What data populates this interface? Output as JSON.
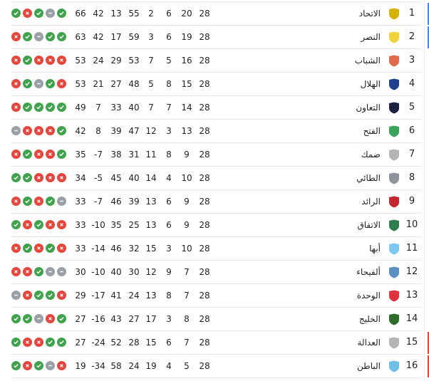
{
  "colors": {
    "win": "#3fa34d",
    "loss": "#e8453c",
    "draw": "#9aa0a6",
    "top_zone": "#4a86e8",
    "relegation_zone": "#e8453c"
  },
  "standings": [
    {
      "rank": "1",
      "team": "الاتحاد",
      "logo_color": "#d4b300",
      "played": "28",
      "won": "20",
      "drawn": "6",
      "lost": "2",
      "gf": "55",
      "ga": "13",
      "gd": "42",
      "points": "66",
      "form": [
        "W",
        "L",
        "W",
        "D",
        "W"
      ],
      "zone": "top"
    },
    {
      "rank": "2",
      "team": "النصر",
      "logo_color": "#f2d43a",
      "played": "28",
      "won": "19",
      "drawn": "6",
      "lost": "3",
      "gf": "59",
      "ga": "17",
      "gd": "42",
      "points": "63",
      "form": [
        "L",
        "W",
        "D",
        "W",
        "W"
      ],
      "zone": "top"
    },
    {
      "rank": "3",
      "team": "الشباب",
      "logo_color": "#e06a4a",
      "played": "28",
      "won": "16",
      "drawn": "5",
      "lost": "7",
      "gf": "53",
      "ga": "29",
      "gd": "24",
      "points": "53",
      "form": [
        "L",
        "W",
        "L",
        "L",
        "L"
      ],
      "zone": ""
    },
    {
      "rank": "4",
      "team": "الهلال",
      "logo_color": "#1f3f8f",
      "played": "28",
      "won": "15",
      "drawn": "8",
      "lost": "5",
      "gf": "48",
      "ga": "27",
      "gd": "21",
      "points": "53",
      "form": [
        "L",
        "W",
        "D",
        "W",
        "L"
      ],
      "zone": ""
    },
    {
      "rank": "5",
      "team": "التعاون",
      "logo_color": "#1b2340",
      "played": "28",
      "won": "14",
      "drawn": "7",
      "lost": "7",
      "gf": "40",
      "ga": "33",
      "gd": "7",
      "points": "49",
      "form": [
        "L",
        "W",
        "W",
        "W",
        "W"
      ],
      "zone": ""
    },
    {
      "rank": "6",
      "team": "الفتح",
      "logo_color": "#3aa55a",
      "played": "28",
      "won": "13",
      "drawn": "3",
      "lost": "12",
      "gf": "47",
      "ga": "39",
      "gd": "8",
      "points": "42",
      "form": [
        "D",
        "L",
        "L",
        "L",
        "W"
      ],
      "zone": ""
    },
    {
      "rank": "7",
      "team": "ضمك",
      "logo_color": "#b5b5b5",
      "played": "28",
      "won": "9",
      "drawn": "8",
      "lost": "11",
      "gf": "31",
      "ga": "38",
      "gd": "-7",
      "points": "35",
      "form": [
        "L",
        "W",
        "L",
        "L",
        "W"
      ],
      "zone": ""
    },
    {
      "rank": "8",
      "team": "الطائي",
      "logo_color": "#8e939c",
      "played": "28",
      "won": "10",
      "drawn": "4",
      "lost": "14",
      "gf": "40",
      "ga": "45",
      "gd": "-5",
      "points": "34",
      "form": [
        "W",
        "W",
        "L",
        "L",
        "L"
      ],
      "zone": ""
    },
    {
      "rank": "9",
      "team": "الرائد",
      "logo_color": "#c4262e",
      "played": "28",
      "won": "9",
      "drawn": "6",
      "lost": "13",
      "gf": "39",
      "ga": "46",
      "gd": "-7",
      "points": "33",
      "form": [
        "L",
        "W",
        "L",
        "W",
        "D"
      ],
      "zone": ""
    },
    {
      "rank": "10",
      "team": "الاتفاق",
      "logo_color": "#2e7d4f",
      "played": "28",
      "won": "9",
      "drawn": "6",
      "lost": "13",
      "gf": "25",
      "ga": "35",
      "gd": "-10",
      "points": "33",
      "form": [
        "W",
        "L",
        "W",
        "L",
        "L"
      ],
      "zone": ""
    },
    {
      "rank": "11",
      "team": "أبها",
      "logo_color": "#7cc8f0",
      "played": "28",
      "won": "10",
      "drawn": "3",
      "lost": "15",
      "gf": "32",
      "ga": "46",
      "gd": "-14",
      "points": "33",
      "form": [
        "L",
        "W",
        "L",
        "W",
        "L"
      ],
      "zone": ""
    },
    {
      "rank": "12",
      "team": "ألفيحاء",
      "logo_color": "#5a8fc4",
      "played": "28",
      "won": "7",
      "drawn": "9",
      "lost": "12",
      "gf": "30",
      "ga": "40",
      "gd": "-10",
      "points": "30",
      "form": [
        "L",
        "L",
        "W",
        "D",
        "D"
      ],
      "zone": ""
    },
    {
      "rank": "13",
      "team": "الوحدة",
      "logo_color": "#e0323c",
      "played": "28",
      "won": "7",
      "drawn": "8",
      "lost": "13",
      "gf": "24",
      "ga": "41",
      "gd": "-17",
      "points": "29",
      "form": [
        "D",
        "L",
        "W",
        "W",
        "L"
      ],
      "zone": ""
    },
    {
      "rank": "14",
      "team": "الخليج",
      "logo_color": "#2f6e2a",
      "played": "28",
      "won": "8",
      "drawn": "3",
      "lost": "17",
      "gf": "27",
      "ga": "43",
      "gd": "-16",
      "points": "27",
      "form": [
        "W",
        "W",
        "D",
        "L",
        "W"
      ],
      "zone": ""
    },
    {
      "rank": "15",
      "team": "العدالة",
      "logo_color": "#b5b5b5",
      "played": "28",
      "won": "7",
      "drawn": "6",
      "lost": "15",
      "gf": "28",
      "ga": "52",
      "gd": "-24",
      "points": "27",
      "form": [
        "W",
        "L",
        "L",
        "W",
        "W"
      ],
      "zone": "relegation"
    },
    {
      "rank": "16",
      "team": "الباطن",
      "logo_color": "#6fc0e8",
      "played": "28",
      "won": "5",
      "drawn": "4",
      "lost": "19",
      "gf": "24",
      "ga": "58",
      "gd": "-34",
      "points": "19",
      "form": [
        "W",
        "L",
        "W",
        "D",
        "L"
      ],
      "zone": "relegation"
    }
  ]
}
